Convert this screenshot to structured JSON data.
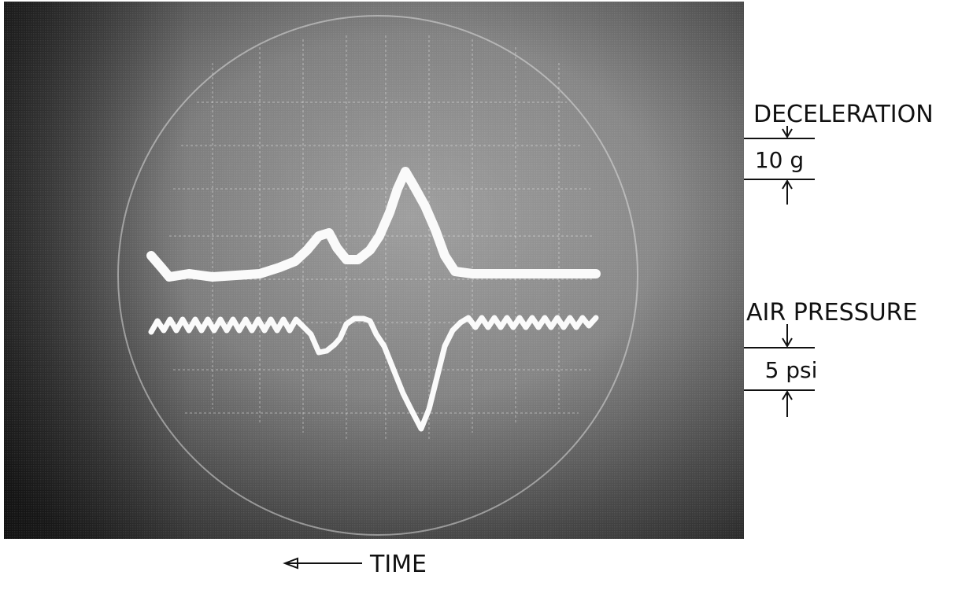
{
  "figure": {
    "scales": [
      {
        "title": "DECELERATION",
        "scale": "10 g"
      },
      {
        "title": "AIR PRESSURE",
        "scale": "5 psi"
      }
    ],
    "time_axis": "TIME"
  }
}
